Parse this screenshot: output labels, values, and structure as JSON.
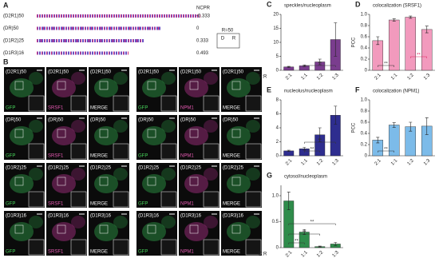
{
  "panel_a": {
    "panel": "A",
    "header": "NCPR",
    "rows": [
      {
        "name": "(D2R1)50",
        "ncpr": -0.333
      },
      {
        "name": "(DR)50",
        "ncpr": 0
      },
      {
        "name": "(D1R2)25",
        "ncpr": 0.333
      },
      {
        "name": "(D1R3)16",
        "ncpr": 0.493
      }
    ],
    "legend": {
      "title": "R=50",
      "d": "D",
      "r": "R"
    }
  },
  "panel_b": {
    "panel": "B",
    "constructs": [
      "(D2R1)50",
      "(DR)50",
      "(D1R2)25",
      "(D1R3)16"
    ],
    "channels_left": [
      "GFP",
      "SRSF1",
      "MERGE"
    ],
    "channels_right": [
      "GFP",
      "NPM1",
      "MERGE"
    ]
  },
  "chart_data": [
    {
      "type": "bar",
      "panel": "C",
      "title": "speckles/nucleoplasm",
      "x_label": "D:R",
      "categories": [
        "2:1",
        "1:1",
        "1:2",
        "1:3"
      ],
      "values": [
        1.2,
        1.6,
        3,
        11
      ],
      "errors": [
        0.2,
        0.3,
        1,
        6
      ],
      "color": "#7a3d8e",
      "ylim": [
        0,
        20
      ],
      "yticks": [
        0,
        5,
        10,
        15,
        20
      ],
      "significance": [
        {
          "pair": [
            "1:1",
            "1:3"
          ],
          "label": "**"
        }
      ]
    },
    {
      "type": "bar",
      "panel": "D",
      "title": "colocalization (SRSF1)",
      "y_label": "PCC",
      "categories": [
        "2:1",
        "1:1",
        "1:2",
        "1:3"
      ],
      "values": [
        0.53,
        0.9,
        0.95,
        0.73
      ],
      "errors": [
        0.07,
        0.02,
        0.02,
        0.06
      ],
      "color": "#f29abd",
      "ylim": [
        0,
        1
      ],
      "yticks": [
        0,
        0.2,
        0.4,
        0.6,
        0.8,
        {
          "value": 1,
          "label": "1.0"
        }
      ],
      "significance": [
        {
          "pair": [
            "2:1",
            "1:1"
          ],
          "label": "**",
          "color": "#333333"
        },
        {
          "pair": [
            "1:2",
            "1:3"
          ],
          "label": "**",
          "color": "#e0245e"
        }
      ]
    },
    {
      "type": "bar",
      "panel": "E",
      "title": "nucleolus/nucleoplasm",
      "categories": [
        "2:1",
        "1:1",
        "1:2",
        "1:3"
      ],
      "values": [
        0.7,
        1,
        3,
        5.8
      ],
      "errors": [
        0.1,
        0.2,
        1,
        1.3
      ],
      "color": "#2e2d8f",
      "ylim": [
        0,
        8
      ],
      "yticks": [
        0,
        2,
        4,
        6,
        8
      ],
      "significance": [
        {
          "pair": [
            "1:1",
            "1:2"
          ],
          "label": "**"
        },
        {
          "pair": [
            "1:1",
            "1:3"
          ],
          "label": "**"
        }
      ]
    },
    {
      "type": "bar",
      "panel": "F",
      "title": "colocalization (NPM1)",
      "y_label": "PCC",
      "categories": [
        "2:1",
        "1:1",
        "1:2",
        "1:3"
      ],
      "values": [
        0.28,
        0.55,
        0.52,
        0.53
      ],
      "errors": [
        0.05,
        0.04,
        0.08,
        0.15
      ],
      "color": "#7cbbe9",
      "ylim": [
        0,
        1
      ],
      "yticks": [
        0,
        0.2,
        0.4,
        0.6,
        0.8,
        {
          "value": 1,
          "label": "1.0"
        }
      ],
      "significance": [
        {
          "pair": [
            "2:1",
            "1:1"
          ],
          "label": "**"
        }
      ]
    },
    {
      "type": "bar",
      "panel": "G",
      "title": "cytosol/nucleoplasm",
      "x_label": "D:R",
      "categories": [
        "2:1",
        "1:1",
        "1:2",
        "1:3"
      ],
      "values": [
        0.9,
        0.3,
        0.02,
        0.07
      ],
      "errors": [
        0.17,
        0.05,
        0.01,
        0.03
      ],
      "color": "#2f8c4b",
      "ylim": [
        0,
        1.2
      ],
      "yticks": [
        0,
        0.5,
        {
          "value": 1,
          "label": "1.0"
        }
      ],
      "significance": [
        {
          "pair": [
            "2:1",
            "1:1"
          ],
          "label": "**"
        },
        {
          "pair": [
            "2:1",
            "1:2"
          ],
          "label": "**"
        },
        {
          "pair": [
            "2:1",
            "1:3"
          ],
          "label": "**"
        }
      ]
    }
  ]
}
